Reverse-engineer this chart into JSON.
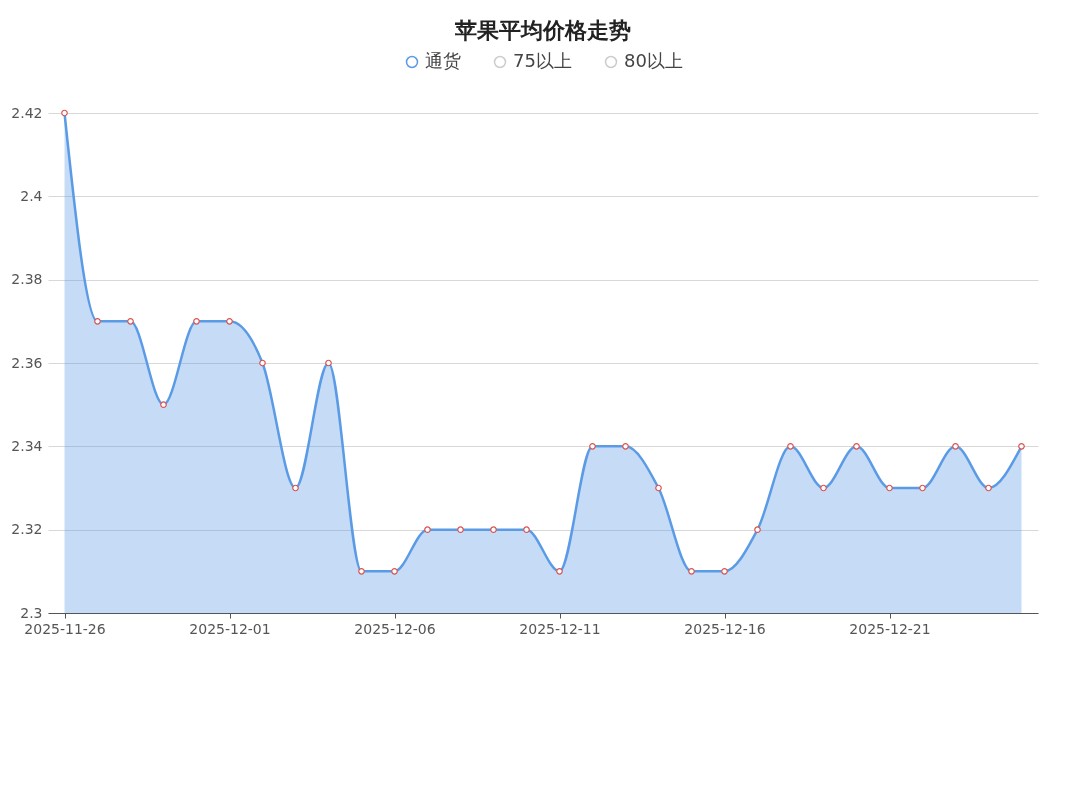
{
  "chart_data": {
    "type": "area",
    "title": "苹果平均价格走势",
    "x": [
      "2025-11-26",
      "2025-11-27",
      "2025-11-28",
      "2025-11-29",
      "2025-11-30",
      "2025-12-01",
      "2025-12-02",
      "2025-12-03",
      "2025-12-04",
      "2025-12-05",
      "2025-12-06",
      "2025-12-07",
      "2025-12-08",
      "2025-12-09",
      "2025-12-10",
      "2025-12-11",
      "2025-12-12",
      "2025-12-13",
      "2025-12-14",
      "2025-12-15",
      "2025-12-16",
      "2025-12-17",
      "2025-12-18",
      "2025-12-19",
      "2025-12-20",
      "2025-12-21",
      "2025-12-22",
      "2025-12-23",
      "2025-12-24",
      "2025-12-25"
    ],
    "series": [
      {
        "name": "通货",
        "color": "#5b9be6",
        "values": [
          2.42,
          2.37,
          2.37,
          2.35,
          2.37,
          2.37,
          2.36,
          2.33,
          2.36,
          2.31,
          2.31,
          2.32,
          2.32,
          2.32,
          2.32,
          2.31,
          2.34,
          2.34,
          2.33,
          2.31,
          2.31,
          2.32,
          2.34,
          2.33,
          2.34,
          2.33,
          2.33,
          2.34,
          2.33,
          2.34
        ]
      },
      {
        "name": "75以上",
        "color": "#cccccc",
        "values": [
          null,
          null,
          null,
          null,
          null,
          null,
          null,
          null,
          null,
          null,
          null,
          null,
          null,
          null,
          null,
          null,
          null,
          null,
          null,
          null,
          null,
          null,
          null,
          null,
          null,
          null,
          null,
          null,
          null,
          null
        ]
      },
      {
        "name": "80以上",
        "color": "#cccccc",
        "values": [
          null,
          null,
          null,
          null,
          null,
          null,
          null,
          null,
          null,
          null,
          null,
          null,
          null,
          null,
          null,
          null,
          null,
          null,
          null,
          null,
          null,
          null,
          null,
          null,
          null,
          null,
          null,
          null,
          null,
          null
        ]
      }
    ],
    "xlim": [
      "2025-11-25T12:00",
      "2025-12-25T12:00"
    ],
    "xticks": [
      "2025-11-26",
      "2025-12-01",
      "2025-12-06",
      "2025-12-11",
      "2025-12-16",
      "2025-12-21"
    ],
    "ylim": [
      2.3,
      2.42
    ],
    "yticks": [
      2.3,
      2.32,
      2.34,
      2.36,
      2.38,
      2.4,
      2.42
    ],
    "grid": "y",
    "legend": "top",
    "marker": "circle",
    "line_style": "solid"
  }
}
